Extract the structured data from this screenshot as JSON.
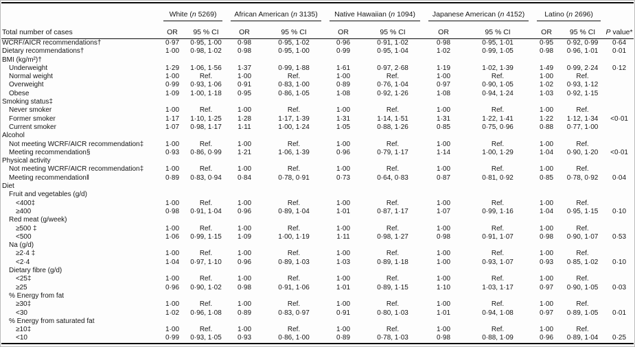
{
  "page": {
    "background": "#fdfdfd",
    "text_color": "#141414",
    "rule_color": "#0a0a0a"
  },
  "table": {
    "stub_header": "Total number of cases",
    "n_label": "n",
    "or_label": "OR",
    "ci_label": "95 % CI",
    "p_header": {
      "italic": "P",
      "rest": " value*"
    },
    "groups": [
      {
        "name": "White",
        "n": "5269"
      },
      {
        "name": "African American",
        "n": "3135"
      },
      {
        "name": "Native Hawaiian",
        "n": "1094"
      },
      {
        "name": "Japanese American",
        "n": "4152"
      },
      {
        "name": "Latino",
        "n": "2696"
      }
    ],
    "rows": [
      {
        "label": "WCRF/AICR recommendations†",
        "indent": 0,
        "cells": [
          "0·97",
          "0·95, 1·00",
          "0·98",
          "0·95, 1·02",
          "0·96",
          "0·91, 1·02",
          "0·98",
          "0·95, 1·01",
          "0·95",
          "0·92, 0·99"
        ],
        "p": "0·64"
      },
      {
        "label": "Dietary recommendations†",
        "indent": 0,
        "cells": [
          "1·00",
          "0·98, 1·02",
          "0·98",
          "0·95, 1·00",
          "0·99",
          "0·95, 1·04",
          "1·02",
          "0·99, 1·05",
          "0·98",
          "0·96, 1·01"
        ],
        "p": "0·01"
      },
      {
        "label": "BMI (kg/m²)†",
        "indent": 0,
        "cells": [],
        "p": ""
      },
      {
        "label": "Underweight",
        "indent": 1,
        "cells": [
          "1·29",
          "1·06, 1·56",
          "1·37",
          "0·99, 1·88",
          "1·61",
          "0·97, 2·68",
          "1·19",
          "1·02, 1·39",
          "1·49",
          "0·99, 2·24"
        ],
        "p": "0·12"
      },
      {
        "label": "Normal weight",
        "indent": 1,
        "cells": [
          "1·00",
          "Ref.",
          "1·00",
          "Ref.",
          "1·00",
          "Ref.",
          "1·00",
          "Ref.",
          "1·00",
          "Ref."
        ],
        "p": ""
      },
      {
        "label": "Overweight",
        "indent": 1,
        "cells": [
          "0·99",
          "0·93, 1·06",
          "0·91",
          "0·83, 1·00",
          "0·89",
          "0·76, 1·04",
          "0·97",
          "0·90, 1·05",
          "1·02",
          "0·93, 1·12"
        ],
        "p": ""
      },
      {
        "label": "Obese",
        "indent": 1,
        "cells": [
          "1·09",
          "1·00, 1·18",
          "0·95",
          "0·86, 1·05",
          "1·08",
          "0·92, 1·26",
          "1·08",
          "0·94, 1·24",
          "1·03",
          "0·92, 1·15"
        ],
        "p": ""
      },
      {
        "label": "Smoking status‡",
        "indent": 0,
        "cells": [],
        "p": ""
      },
      {
        "label": "Never smoker",
        "indent": 1,
        "cells": [
          "1·00",
          "Ref.",
          "1·00",
          "Ref.",
          "1·00",
          "Ref.",
          "1·00",
          "Ref.",
          "1·00",
          "Ref."
        ],
        "p": ""
      },
      {
        "label": "Former smoker",
        "indent": 1,
        "cells": [
          "1·17",
          "1·10, 1·25",
          "1·28",
          "1·17, 1·39",
          "1·31",
          "1·14, 1·51",
          "1·31",
          "1·22, 1·41",
          "1·22",
          "1·12, 1·34"
        ],
        "p": "<0·01"
      },
      {
        "label": "Current smoker",
        "indent": 1,
        "cells": [
          "1·07",
          "0·98, 1·17",
          "1·11",
          "1·00, 1·24",
          "1·05",
          "0·88, 1·26",
          "0·85",
          "0·75, 0·96",
          "0·88",
          "0·77, 1·00"
        ],
        "p": ""
      },
      {
        "label": "Alcohol",
        "indent": 0,
        "cells": [],
        "p": ""
      },
      {
        "label": "Not meeting WCRF/AICR recommendation‡",
        "indent": 1,
        "cells": [
          "1·00",
          "Ref.",
          "1·00",
          "Ref.",
          "1·00",
          "Ref.",
          "1·00",
          "Ref.",
          "1·00",
          "Ref."
        ],
        "p": ""
      },
      {
        "label": "Meeting recommendation§",
        "indent": 1,
        "cells": [
          "0·93",
          "0·86, 0·99",
          "1·21",
          "1·06, 1·39",
          "0·96",
          "0·79, 1·17",
          "1·14",
          "1·00, 1·29",
          "1·04",
          "0·90, 1·20"
        ],
        "p": "<0·01"
      },
      {
        "label": "Physical activity",
        "indent": 0,
        "cells": [],
        "p": ""
      },
      {
        "label": "Not meeting WCRF/AICR recommendation‡",
        "indent": 1,
        "cells": [
          "1·00",
          "Ref.",
          "1·00",
          "Ref.",
          "1·00",
          "Ref.",
          "1·00",
          "Ref.",
          "1·00",
          "Ref."
        ],
        "p": ""
      },
      {
        "label": "Meeting recommendation‖",
        "indent": 1,
        "cells": [
          "0·89",
          "0·83, 0·94",
          "0·84",
          "0·78, 0·91",
          "0·73",
          "0·64, 0·83",
          "0·87",
          "0·81, 0·92",
          "0·85",
          "0·78, 0·92"
        ],
        "p": "0·04"
      },
      {
        "label": "Diet",
        "indent": 0,
        "cells": [],
        "p": ""
      },
      {
        "label": "Fruit and vegetables (g/d)",
        "indent": 1,
        "cells": [],
        "p": ""
      },
      {
        "label": "<400‡",
        "indent": 2,
        "cells": [
          "1·00",
          "Ref.",
          "1·00",
          "Ref.",
          "1·00",
          "Ref.",
          "1·00",
          "Ref.",
          "1·00",
          "Ref."
        ],
        "p": ""
      },
      {
        "label": "≥400",
        "indent": 2,
        "cells": [
          "0·98",
          "0·91, 1·04",
          "0·96",
          "0·89, 1·04",
          "1·01",
          "0·87, 1·17",
          "1·07",
          "0·99, 1·16",
          "1·04",
          "0·95, 1·15"
        ],
        "p": "0·10"
      },
      {
        "label": "Red meat (g/week)",
        "indent": 1,
        "cells": [],
        "p": ""
      },
      {
        "label": "≥500 ‡",
        "indent": 2,
        "cells": [
          "1·00",
          "Ref.",
          "1·00",
          "Ref.",
          "1·00",
          "Ref.",
          "1·00",
          "Ref.",
          "1·00",
          "Ref."
        ],
        "p": ""
      },
      {
        "label": "<500",
        "indent": 2,
        "cells": [
          "1·06",
          "0·99, 1·15",
          "1·09",
          "1·00, 1·19",
          "1·11",
          "0·98, 1·27",
          "0·98",
          "0·91, 1·07",
          "0·98",
          "0·90, 1·07"
        ],
        "p": "0·53"
      },
      {
        "label": "Na (g/d)",
        "indent": 1,
        "cells": [],
        "p": ""
      },
      {
        "label": "≥2·4 ‡",
        "indent": 2,
        "cells": [
          "1·00",
          "Ref.",
          "1·00",
          "Ref.",
          "1·00",
          "Ref.",
          "1·00",
          "Ref.",
          "1·00",
          "Ref."
        ],
        "p": ""
      },
      {
        "label": "<2·4",
        "indent": 2,
        "cells": [
          "1·04",
          "0·97, 1·10",
          "0·96",
          "0·89, 1·03",
          "1·03",
          "0·89, 1·18",
          "1·00",
          "0·93, 1·07",
          "0·93",
          "0·85, 1·02"
        ],
        "p": "0·10"
      },
      {
        "label": "Dietary fibre (g/d)",
        "indent": 1,
        "cells": [],
        "p": ""
      },
      {
        "label": "<25‡",
        "indent": 2,
        "cells": [
          "1·00",
          "Ref.",
          "1·00",
          "Ref.",
          "1·00",
          "Ref.",
          "1·00",
          "Ref.",
          "1·00",
          "Ref."
        ],
        "p": ""
      },
      {
        "label": "≥25",
        "indent": 2,
        "cells": [
          "0·96",
          "0·90, 1·02",
          "0·98",
          "0·91, 1·06",
          "1·01",
          "0·89, 1·15",
          "1·10",
          "1·03, 1·17",
          "0·97",
          "0·90, 1·05"
        ],
        "p": "0·03"
      },
      {
        "label": "% Energy from fat",
        "indent": 1,
        "cells": [],
        "p": ""
      },
      {
        "label": "≥30‡",
        "indent": 2,
        "cells": [
          "1·00",
          "Ref.",
          "1·00",
          "Ref.",
          "1·00",
          "Ref.",
          "1·00",
          "Ref.",
          "1·00",
          "Ref."
        ],
        "p": ""
      },
      {
        "label": "<30",
        "indent": 2,
        "cells": [
          "1·02",
          "0·96, 1·08",
          "0·89",
          "0·83, 0·97",
          "0·91",
          "0·80, 1·03",
          "1·01",
          "0·94, 1·08",
          "0·97",
          "0·89, 1·05"
        ],
        "p": "0·01"
      },
      {
        "label": "% Energy from saturated fat",
        "indent": 1,
        "cells": [],
        "p": ""
      },
      {
        "label": "≥10‡",
        "indent": 2,
        "cells": [
          "1·00",
          "Ref.",
          "1·00",
          "Ref.",
          "1·00",
          "Ref.",
          "1·00",
          "Ref.",
          "1·00",
          "Ref."
        ],
        "p": ""
      },
      {
        "label": "<10",
        "indent": 2,
        "cells": [
          "0·99",
          "0·93, 1·05",
          "0·93",
          "0·86, 1·00",
          "0·89",
          "0·78, 1·03",
          "0·98",
          "0·88, 1·09",
          "0·96",
          "0·89, 1·04"
        ],
        "p": "0·25"
      }
    ]
  }
}
